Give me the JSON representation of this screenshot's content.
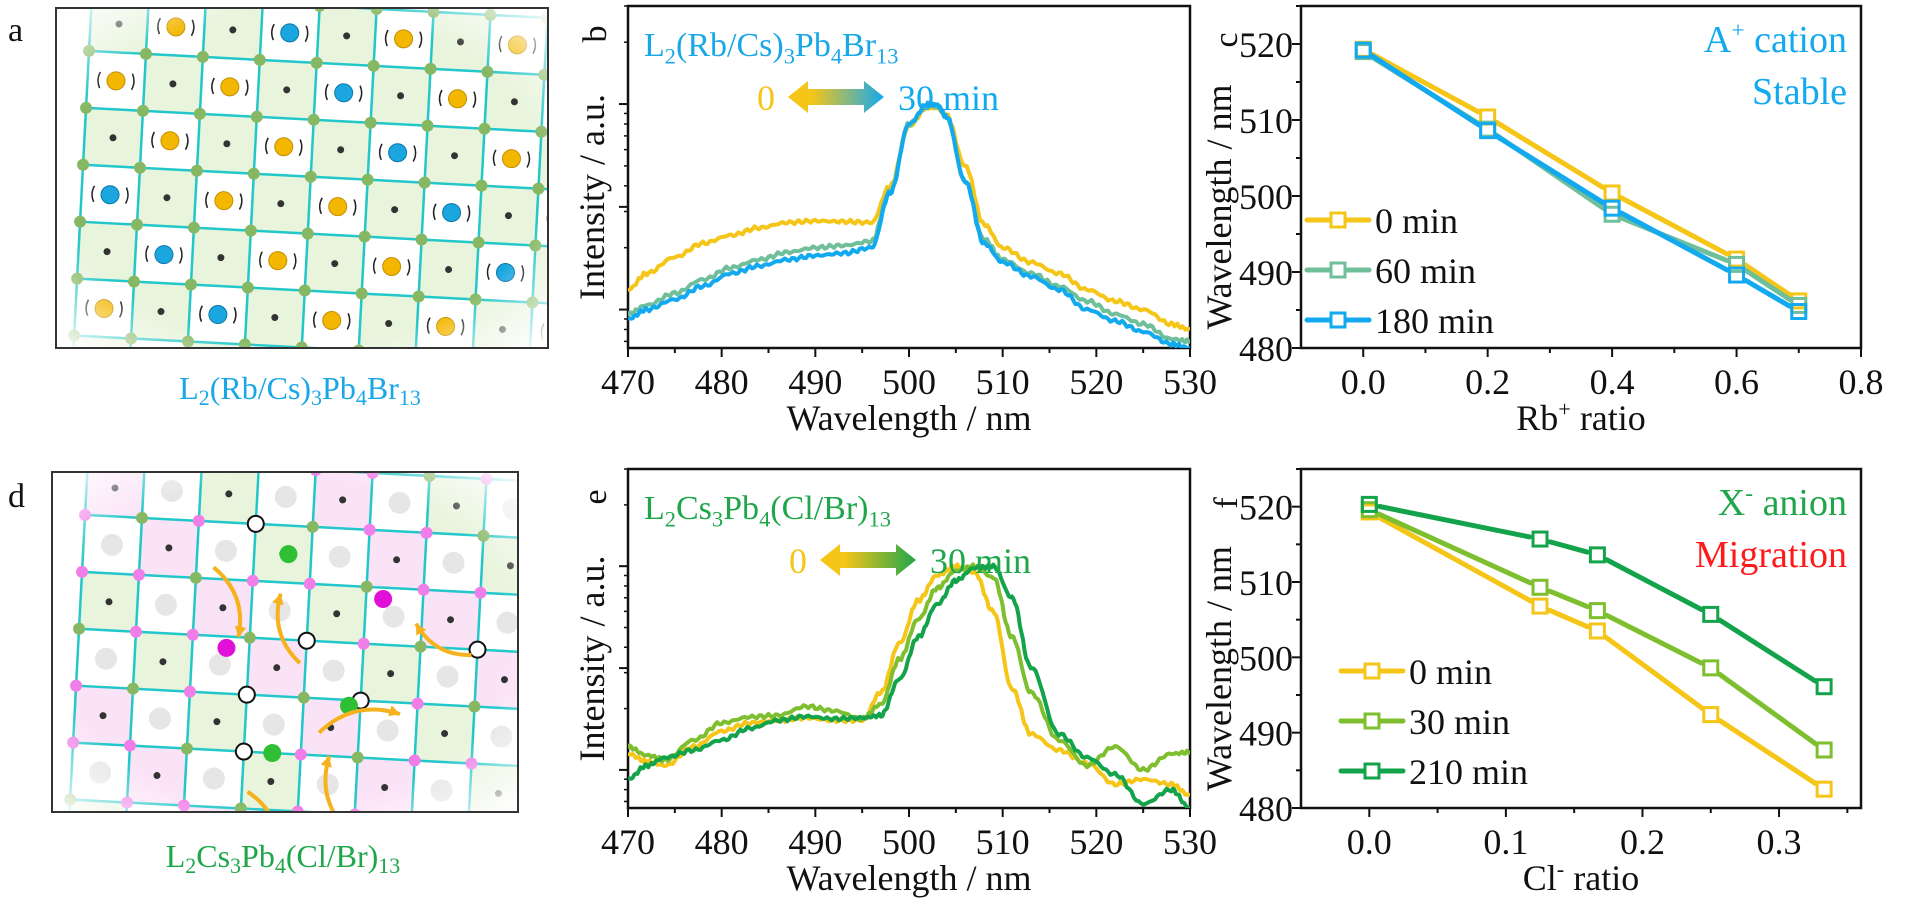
{
  "panels": {
    "a": {
      "letter": "a",
      "caption": {
        "main": "L",
        "s1": "2",
        "m2": "(Rb/Cs)",
        "s2": "3",
        "m3": "Pb",
        "s3": "4",
        "m4": "Br",
        "s4": "13"
      },
      "caption_color": "#1aa7e8"
    },
    "d": {
      "letter": "d",
      "caption": {
        "main": "L",
        "s1": "2",
        "m2": "Cs",
        "s2": "3",
        "m3": "Pb",
        "s3": "4",
        "m4": "(Cl/Br)",
        "s4": "13"
      },
      "caption_color": "#1fa64a"
    }
  },
  "colors": {
    "yellow": "#f5c518",
    "sea_green": "#6fbf9a",
    "sky_blue": "#12a9ef",
    "lime_green": "#7dbf2e",
    "deep_green": "#13a34a",
    "red": "#ff1a1a",
    "lattice_cyan": "#22c7c9",
    "cell_green": "#e8f4dc",
    "cell_pink": "#fbe3f7",
    "node_green": "#86b864",
    "node_pink": "#f07ee8"
  },
  "chart_data": [
    {
      "id": "b",
      "letter": "b",
      "type": "line",
      "title": "L2(Rb/Cs)3Pb4Br13",
      "title_parts": [
        "L",
        "2",
        "(Rb/Cs)",
        "3",
        "Pb",
        "4",
        "Br",
        "13"
      ],
      "title_color": "#1aa7e8",
      "arrow": {
        "left_label": "0",
        "right_label": "30 min",
        "left_color": "#f5c518",
        "right_color": "#12a9ef"
      },
      "xlabel": "Wavelength / nm",
      "ylabel": "Intensity / a.u.",
      "xlim": [
        470,
        530
      ],
      "xticks": [
        470,
        480,
        490,
        500,
        510,
        520,
        530
      ],
      "yscale": "log",
      "ylim": [
        0.065,
        3.0
      ],
      "yticks": [
        0.1,
        0.316,
        1.0
      ],
      "series": [
        {
          "name": "0 min",
          "color": "#f5c518",
          "x": [
            470,
            472,
            475,
            478,
            481,
            484,
            487,
            490,
            493,
            496,
            498,
            500,
            502,
            503,
            504,
            506,
            508,
            510,
            513,
            516,
            519,
            522,
            525,
            528,
            530
          ],
          "y": [
            0.125,
            0.15,
            0.18,
            0.21,
            0.23,
            0.25,
            0.265,
            0.27,
            0.268,
            0.265,
            0.4,
            0.78,
            0.97,
            0.96,
            0.88,
            0.5,
            0.26,
            0.2,
            0.17,
            0.15,
            0.125,
            0.11,
            0.1,
            0.085,
            0.08
          ]
        },
        {
          "name": "60 min",
          "color": "#6fbf9a",
          "x": [
            470,
            472,
            475,
            478,
            481,
            484,
            487,
            490,
            493,
            496,
            498,
            500,
            502,
            503,
            504,
            506,
            508,
            510,
            513,
            516,
            519,
            522,
            525,
            528,
            530
          ],
          "y": [
            0.095,
            0.105,
            0.12,
            0.14,
            0.16,
            0.175,
            0.19,
            0.2,
            0.205,
            0.215,
            0.38,
            0.8,
            0.99,
            0.98,
            0.86,
            0.42,
            0.22,
            0.175,
            0.15,
            0.13,
            0.11,
            0.095,
            0.085,
            0.072,
            0.07
          ]
        },
        {
          "name": "30 min",
          "color": "#12a9ef",
          "x": [
            470,
            472,
            475,
            478,
            481,
            484,
            487,
            490,
            493,
            496,
            498,
            500,
            502,
            503,
            504,
            506,
            508,
            510,
            513,
            516,
            519,
            522,
            525,
            528,
            530
          ],
          "y": [
            0.09,
            0.1,
            0.112,
            0.13,
            0.15,
            0.163,
            0.175,
            0.183,
            0.188,
            0.2,
            0.37,
            0.8,
            1.0,
            0.99,
            0.87,
            0.42,
            0.21,
            0.17,
            0.145,
            0.125,
            0.1,
            0.088,
            0.078,
            0.068,
            0.065
          ]
        }
      ]
    },
    {
      "id": "c",
      "letter": "c",
      "type": "line",
      "xlabel": "Rb+ ratio",
      "xlabel_parts": [
        "Rb",
        "+",
        " ratio"
      ],
      "ylabel": "Wavelength / nm",
      "xlim": [
        -0.1,
        0.8
      ],
      "ylim": [
        480,
        525
      ],
      "xticks": [
        0.0,
        0.2,
        0.4,
        0.6,
        0.8
      ],
      "xtick_labels": [
        "0.0",
        "0.2",
        "0.4",
        "0.6",
        "0.8"
      ],
      "yticks": [
        480,
        490,
        500,
        510,
        520
      ],
      "annotation": [
        {
          "text": "A",
          "sup": "+",
          "rest": " cation",
          "color": "#12a9ef"
        },
        {
          "text": "Stable",
          "sup": "",
          "rest": "",
          "color": "#12a9ef"
        }
      ],
      "legend": "lower-left",
      "series": [
        {
          "name": "0 min",
          "color": "#f5c518",
          "x": [
            0.0,
            0.2,
            0.4,
            0.6,
            0.7
          ],
          "y": [
            519.3,
            510.4,
            500.4,
            491.7,
            486.2
          ]
        },
        {
          "name": "60 min",
          "color": "#6fbf9a",
          "x": [
            0.0,
            0.2,
            0.4,
            0.6,
            0.7
          ],
          "y": [
            519.0,
            508.8,
            497.6,
            491.0,
            485.6
          ]
        },
        {
          "name": "180 min",
          "color": "#12a9ef",
          "x": [
            0.0,
            0.2,
            0.4,
            0.6,
            0.7
          ],
          "y": [
            519.2,
            508.6,
            498.4,
            489.6,
            484.8
          ]
        }
      ]
    },
    {
      "id": "e",
      "letter": "e",
      "type": "line",
      "title": "L2Cs3Pb4(Cl/Br)13",
      "title_parts": [
        "L",
        "2",
        "Cs",
        "3",
        "Pb",
        "4",
        "(Cl/Br)",
        "13"
      ],
      "title_color": "#1fa64a",
      "arrow": {
        "left_label": "0",
        "right_label": "30 min",
        "left_color": "#f5c518",
        "right_color": "#1fa64a"
      },
      "xlabel": "Wavelength / nm",
      "ylabel": "Intensity / a.u.",
      "xlim": [
        470,
        530
      ],
      "xticks": [
        470,
        480,
        490,
        500,
        510,
        520,
        530
      ],
      "yscale": "log",
      "ylim": [
        0.065,
        3.0
      ],
      "yticks": [
        0.1,
        0.316,
        1.0
      ],
      "series": [
        {
          "name": "0 min",
          "color": "#f5c518",
          "x": [
            470,
            472,
            474,
            477,
            480,
            483,
            486,
            489,
            492,
            495,
            497,
            499,
            501,
            503,
            505,
            507,
            509,
            511,
            513,
            516,
            519,
            522,
            525,
            528,
            530
          ],
          "y": [
            0.12,
            0.11,
            0.105,
            0.13,
            0.155,
            0.17,
            0.175,
            0.18,
            0.175,
            0.175,
            0.24,
            0.42,
            0.68,
            0.9,
            1.0,
            0.93,
            0.6,
            0.25,
            0.15,
            0.125,
            0.108,
            0.085,
            0.09,
            0.085,
            0.075
          ]
        },
        {
          "name": "30 min",
          "color": "#7dbf2e",
          "x": [
            470,
            472,
            474,
            477,
            480,
            483,
            486,
            489,
            492,
            495,
            497,
            499,
            501,
            503,
            505,
            507,
            509,
            511,
            513,
            516,
            519,
            522,
            525,
            528,
            530
          ],
          "y": [
            0.13,
            0.118,
            0.112,
            0.14,
            0.17,
            0.182,
            0.185,
            0.205,
            0.195,
            0.178,
            0.21,
            0.35,
            0.55,
            0.78,
            0.95,
            1.0,
            0.88,
            0.45,
            0.24,
            0.14,
            0.105,
            0.13,
            0.1,
            0.12,
            0.122
          ]
        },
        {
          "name": "210 min",
          "color": "#13a34a",
          "x": [
            470,
            472,
            474,
            477,
            480,
            483,
            486,
            489,
            492,
            495,
            497,
            499,
            501,
            503,
            505,
            507,
            509,
            511,
            513,
            516,
            519,
            522,
            525,
            528,
            530
          ],
          "y": [
            0.09,
            0.105,
            0.115,
            0.125,
            0.14,
            0.16,
            0.175,
            0.183,
            0.178,
            0.18,
            0.185,
            0.28,
            0.45,
            0.65,
            0.85,
            0.98,
            1.0,
            0.7,
            0.32,
            0.15,
            0.115,
            0.095,
            0.068,
            0.08,
            0.065
          ]
        }
      ]
    },
    {
      "id": "f",
      "letter": "f",
      "type": "line",
      "xlabel": "Cl- ratio",
      "xlabel_parts": [
        "Cl",
        "-",
        " ratio"
      ],
      "ylabel": "Wavelength / nm",
      "xlim": [
        -0.05,
        0.36
      ],
      "ylim": [
        480,
        525
      ],
      "xticks": [
        0.0,
        0.1,
        0.2,
        0.3
      ],
      "xtick_labels": [
        "0.0",
        "0.1",
        "0.2",
        "0.3"
      ],
      "yticks": [
        480,
        490,
        500,
        510,
        520
      ],
      "annotation": [
        {
          "text": "X",
          "sup": "-",
          "rest": " anion",
          "color": "#1fa64a"
        },
        {
          "text": "Migration",
          "sup": "",
          "rest": "",
          "color": "#ff1a1a"
        }
      ],
      "legend": "lower-left",
      "series": [
        {
          "name": "0 min",
          "color": "#f5c518",
          "x": [
            0.0,
            0.125,
            0.167,
            0.25,
            0.333
          ],
          "y": [
            519.3,
            506.8,
            503.5,
            492.4,
            482.5
          ]
        },
        {
          "name": "30 min",
          "color": "#7dbf2e",
          "x": [
            0.0,
            0.125,
            0.167,
            0.25,
            0.333
          ],
          "y": [
            519.6,
            509.3,
            506.2,
            498.6,
            487.7
          ]
        },
        {
          "name": "210 min",
          "color": "#13a34a",
          "x": [
            0.0,
            0.125,
            0.167,
            0.25,
            0.333
          ],
          "y": [
            520.3,
            515.7,
            513.6,
            505.7,
            496.1
          ]
        }
      ]
    }
  ]
}
